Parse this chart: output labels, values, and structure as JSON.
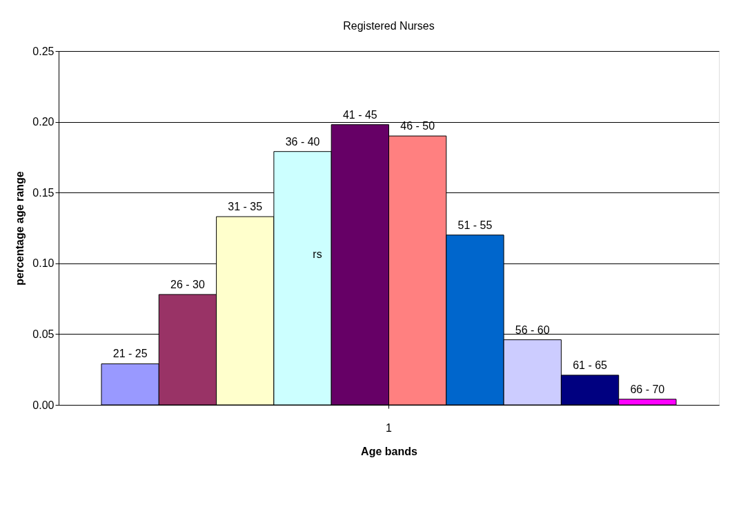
{
  "chart_data": {
    "type": "bar",
    "title": "Registered Nurses",
    "xlabel": "Age bands",
    "ylabel": "percentage age range",
    "categories": [
      "1"
    ],
    "series": [
      {
        "name": "21 - 25",
        "color": "#9999ff",
        "values": [
          0.029
        ]
      },
      {
        "name": "26 - 30",
        "color": "#993366",
        "values": [
          0.078
        ]
      },
      {
        "name": "31 - 35",
        "color": "#ffffcc",
        "values": [
          0.133
        ]
      },
      {
        "name": "36 - 40",
        "color": "#ccffff",
        "values": [
          0.179
        ]
      },
      {
        "name": "41 - 45",
        "color": "#660066",
        "values": [
          0.198
        ]
      },
      {
        "name": "46 - 50",
        "color": "#ff8080",
        "values": [
          0.19
        ]
      },
      {
        "name": "51 - 55",
        "color": "#0066cc",
        "values": [
          0.12
        ]
      },
      {
        "name": "56 - 60",
        "color": "#ccccff",
        "values": [
          0.046
        ]
      },
      {
        "name": "61 - 65",
        "color": "#000080",
        "values": [
          0.021
        ]
      },
      {
        "name": "66 - 70",
        "color": "#ff00ff",
        "values": [
          0.004
        ]
      }
    ],
    "ylim": [
      0,
      0.25
    ],
    "yticks": [
      {
        "value": 0,
        "label": "0.00"
      },
      {
        "value": 0.05,
        "label": "0.05"
      },
      {
        "value": 0.1,
        "label": "0.10"
      },
      {
        "value": 0.15,
        "label": "0.15"
      },
      {
        "value": 0.2,
        "label": "0.20"
      },
      {
        "value": 0.25,
        "label": "0.25"
      }
    ],
    "annotations": [
      "rs"
    ],
    "grid": "y",
    "legend": false
  }
}
